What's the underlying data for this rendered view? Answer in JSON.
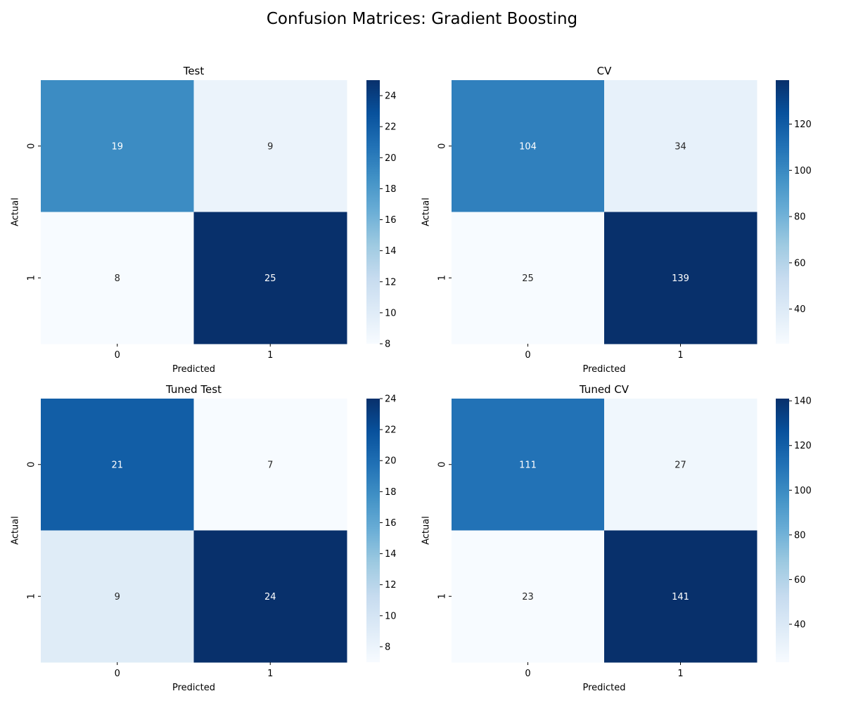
{
  "figure": {
    "title": "Confusion Matrices: Gradient Boosting"
  },
  "chart_data": [
    {
      "type": "heatmap",
      "title": "Test",
      "xlabel": "Predicted",
      "ylabel": "Actual",
      "x_categories": [
        "0",
        "1"
      ],
      "y_categories": [
        "0",
        "1"
      ],
      "values": [
        [
          19,
          9
        ],
        [
          8,
          25
        ]
      ],
      "colormap": "Blues",
      "colorbar": {
        "min": 8,
        "max": 25,
        "ticks": [
          8,
          10,
          12,
          14,
          16,
          18,
          20,
          22,
          24
        ]
      }
    },
    {
      "type": "heatmap",
      "title": "CV",
      "xlabel": "Predicted",
      "ylabel": "Actual",
      "x_categories": [
        "0",
        "1"
      ],
      "y_categories": [
        "0",
        "1"
      ],
      "values": [
        [
          104,
          34
        ],
        [
          25,
          139
        ]
      ],
      "colormap": "Blues",
      "colorbar": {
        "min": 25,
        "max": 139,
        "ticks": [
          40,
          60,
          80,
          100,
          120
        ]
      }
    },
    {
      "type": "heatmap",
      "title": "Tuned Test",
      "xlabel": "Predicted",
      "ylabel": "Actual",
      "x_categories": [
        "0",
        "1"
      ],
      "y_categories": [
        "0",
        "1"
      ],
      "values": [
        [
          21,
          7
        ],
        [
          9,
          24
        ]
      ],
      "colormap": "Blues",
      "colorbar": {
        "min": 7,
        "max": 24,
        "ticks": [
          8,
          10,
          12,
          14,
          16,
          18,
          20,
          22,
          24
        ]
      }
    },
    {
      "type": "heatmap",
      "title": "Tuned CV",
      "xlabel": "Predicted",
      "ylabel": "Actual",
      "x_categories": [
        "0",
        "1"
      ],
      "y_categories": [
        "0",
        "1"
      ],
      "values": [
        [
          111,
          27
        ],
        [
          23,
          141
        ]
      ],
      "colormap": "Blues",
      "colorbar": {
        "min": 23,
        "max": 141,
        "ticks": [
          40,
          60,
          80,
          100,
          120,
          140
        ]
      }
    }
  ]
}
